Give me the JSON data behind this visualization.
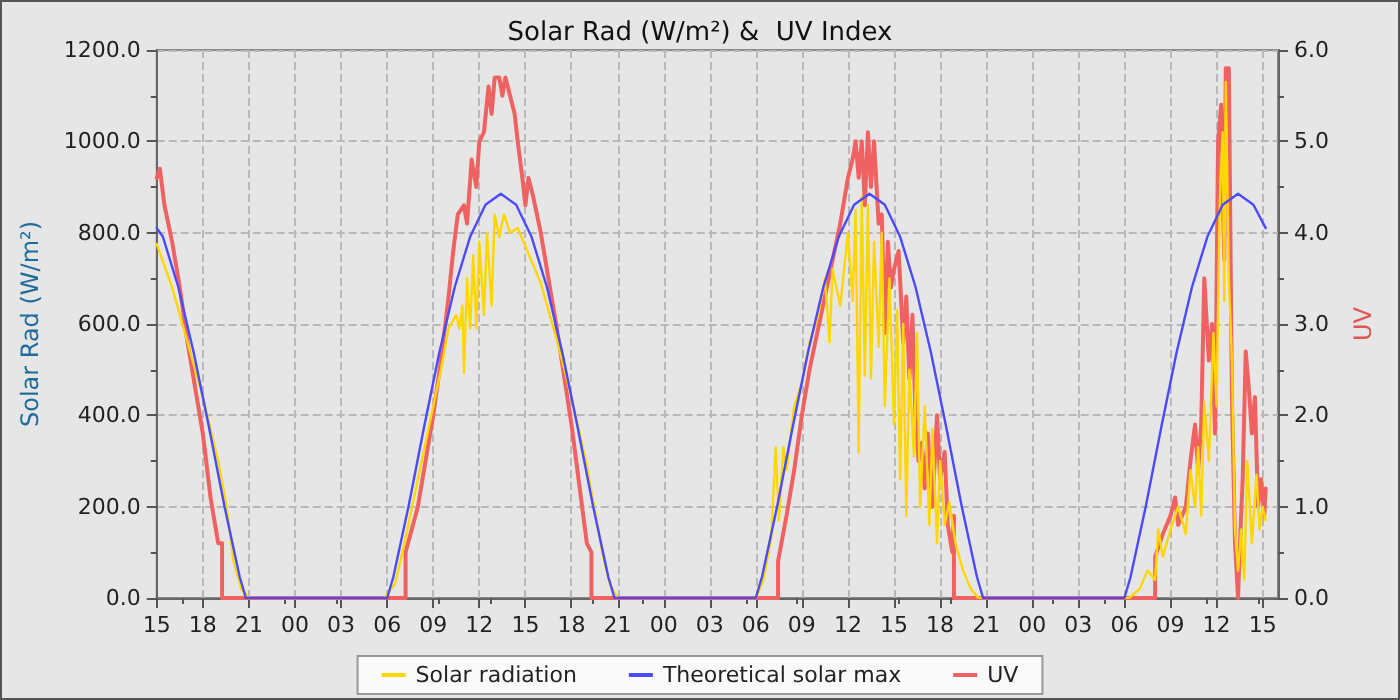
{
  "chart_data": {
    "type": "line",
    "title": "Solar Rad (W/m²) &  UV Index",
    "ylabel": "Solar Rad (W/m²)",
    "y2label": "UV",
    "xlim": [
      15,
      88
    ],
    "xticks": [
      {
        "value": 15,
        "label": "15"
      },
      {
        "value": 18,
        "label": "18"
      },
      {
        "value": 21,
        "label": "21"
      },
      {
        "value": 24,
        "label": "00"
      },
      {
        "value": 27,
        "label": "03"
      },
      {
        "value": 30,
        "label": "06"
      },
      {
        "value": 33,
        "label": "09"
      },
      {
        "value": 36,
        "label": "12"
      },
      {
        "value": 39,
        "label": "15"
      },
      {
        "value": 42,
        "label": "18"
      },
      {
        "value": 45,
        "label": "21"
      },
      {
        "value": 48,
        "label": "00"
      },
      {
        "value": 51,
        "label": "03"
      },
      {
        "value": 54,
        "label": "06"
      },
      {
        "value": 57,
        "label": "09"
      },
      {
        "value": 60,
        "label": "12"
      },
      {
        "value": 63,
        "label": "15"
      },
      {
        "value": 66,
        "label": "18"
      },
      {
        "value": 69,
        "label": "21"
      },
      {
        "value": 72,
        "label": "00"
      },
      {
        "value": 75,
        "label": "03"
      },
      {
        "value": 78,
        "label": "06"
      },
      {
        "value": 81,
        "label": "09"
      },
      {
        "value": 84,
        "label": "12"
      },
      {
        "value": 87,
        "label": "15"
      }
    ],
    "ylim": [
      0,
      1200
    ],
    "yticks": [
      {
        "value": 0,
        "label": "0.0"
      },
      {
        "value": 200,
        "label": "200.0"
      },
      {
        "value": 400,
        "label": "400.0"
      },
      {
        "value": 600,
        "label": "600.0"
      },
      {
        "value": 800,
        "label": "800.0"
      },
      {
        "value": 1000,
        "label": "1000.0"
      },
      {
        "value": 1200,
        "label": "1200.0"
      }
    ],
    "y2lim": [
      0,
      6
    ],
    "y2ticks": [
      {
        "value": 0,
        "label": "0.0"
      },
      {
        "value": 1,
        "label": "1.0"
      },
      {
        "value": 2,
        "label": "2.0"
      },
      {
        "value": 3,
        "label": "3.0"
      },
      {
        "value": 4,
        "label": "4.0"
      },
      {
        "value": 5,
        "label": "5.0"
      },
      {
        "value": 6,
        "label": "6.0"
      }
    ],
    "grid": true,
    "legend": "bottom",
    "marker": "none",
    "line_style": "solid",
    "series": [
      {
        "name": "UV",
        "color": "#f06262",
        "axis": "y2",
        "x": [
          15,
          15.2,
          15.5,
          16,
          16.5,
          17,
          17.5,
          18,
          18.5,
          19,
          19.25,
          19.25,
          31.2,
          31.2,
          32,
          32.5,
          33,
          33.5,
          34,
          34.3,
          34.6,
          35,
          35.2,
          35.5,
          35.8,
          36,
          36.3,
          36.6,
          36.8,
          37,
          37.3,
          37.5,
          37.7,
          38,
          38.3,
          38.5,
          38.8,
          39,
          39.2,
          39.5,
          40,
          41,
          42,
          43,
          43.3,
          43.3,
          55.45,
          55.45,
          56,
          56.5,
          57,
          57.5,
          58,
          58.5,
          59,
          59.5,
          60,
          60.3,
          60.5,
          60.7,
          60.9,
          61.1,
          61.3,
          61.5,
          61.7,
          62,
          62.2,
          62.4,
          62.6,
          62.8,
          63,
          63.3,
          63.6,
          63.8,
          64,
          64.2,
          64.4,
          64.6,
          64.8,
          65,
          65.2,
          65.5,
          65.8,
          66,
          66.3,
          66.5,
          66.8,
          66.9,
          66.9,
          80,
          80,
          80.5,
          81,
          81.3,
          81.5,
          82,
          82.3,
          82.6,
          82.8,
          83,
          83.2,
          83.5,
          83.7,
          83.9,
          84.1,
          84.3,
          84.5,
          84.6,
          84.8,
          85,
          85.2,
          85.4,
          85.5,
          85.7,
          85.9,
          86.1,
          86.3,
          86.5,
          86.7,
          86.9,
          87.1,
          87.2
        ],
        "values": [
          4.6,
          4.7,
          4.3,
          3.9,
          3.4,
          2.8,
          2.3,
          1.8,
          1.1,
          0.6,
          0.6,
          0,
          0,
          0.5,
          1.0,
          1.5,
          2.0,
          2.6,
          3.3,
          3.8,
          4.2,
          4.3,
          4.1,
          4.8,
          4.5,
          5.0,
          5.1,
          5.6,
          5.3,
          5.7,
          5.7,
          5.5,
          5.7,
          5.5,
          5.3,
          5.0,
          4.6,
          4.3,
          4.6,
          4.4,
          4.0,
          3.0,
          1.9,
          0.6,
          0.5,
          0,
          0,
          0.4,
          0.9,
          1.4,
          2.0,
          2.5,
          2.9,
          3.3,
          3.7,
          4.1,
          4.6,
          4.8,
          5.0,
          4.6,
          5.0,
          4.3,
          5.1,
          4.5,
          5.0,
          4.1,
          4.2,
          2.9,
          3.9,
          3.4,
          3.6,
          3.8,
          2.8,
          3.3,
          2.4,
          3.1,
          2.0,
          1.5,
          1.7,
          1.2,
          1.8,
          1.0,
          2.0,
          1.3,
          1.6,
          0.8,
          0.5,
          0.9,
          0,
          0,
          0.45,
          0.7,
          0.9,
          1.1,
          0.8,
          1.0,
          1.5,
          1.9,
          1.4,
          1.9,
          3.5,
          2.6,
          3.0,
          1.8,
          5.0,
          5.4,
          3.7,
          5.8,
          5.8,
          2.2,
          0.6,
          0,
          0.5,
          1.3,
          2.7,
          2.3,
          1.8,
          2.2,
          1.0,
          1.3,
          0.9,
          1.2
        ]
      },
      {
        "name": "Solar radiation",
        "color": "#ffd700",
        "x": [
          15,
          16,
          17,
          18,
          19,
          19.5,
          20,
          20.5,
          21,
          29.8,
          30.5,
          31,
          32,
          33,
          33.5,
          34,
          34.5,
          34.7,
          34.9,
          35,
          35.2,
          35.4,
          35.6,
          35.8,
          36,
          36.3,
          36.5,
          36.8,
          37,
          37.3,
          37.6,
          38,
          38.5,
          39,
          40,
          41,
          42,
          43,
          44,
          44.5,
          45,
          54,
          54.5,
          55,
          55.3,
          55.5,
          55.8,
          56,
          56.5,
          57,
          57.5,
          58,
          58.5,
          58.8,
          59,
          59.5,
          60,
          60.3,
          60.5,
          60.7,
          60.9,
          61.1,
          61.3,
          61.5,
          61.7,
          62,
          62.2,
          62.4,
          62.7,
          63,
          63.2,
          63.4,
          63.6,
          63.8,
          64,
          64.3,
          64.5,
          64.7,
          65,
          65.3,
          65.5,
          65.8,
          66,
          66.3,
          66.6,
          67,
          67.5,
          68,
          68.5,
          78.3,
          79,
          79.5,
          80,
          80.2,
          80.5,
          81,
          81.5,
          82,
          82.3,
          82.6,
          82.8,
          83,
          83.2,
          83.5,
          83.8,
          84,
          84.2,
          84.4,
          84.5,
          84.6,
          84.8,
          85,
          85.2,
          85.4,
          85.6,
          85.8,
          86,
          86.3,
          86.6,
          86.8,
          87,
          87.2
        ],
        "values": [
          775,
          680,
          560,
          440,
          300,
          210,
          80,
          20,
          0,
          0,
          30,
          100,
          260,
          420,
          500,
          590,
          620,
          590,
          640,
          493,
          700,
          590,
          750,
          590,
          780,
          620,
          800,
          640,
          840,
          790,
          840,
          800,
          810,
          770,
          690,
          570,
          440,
          290,
          100,
          30,
          0,
          0,
          40,
          130,
          330,
          170,
          330,
          280,
          420,
          470,
          560,
          610,
          700,
          560,
          720,
          640,
          800,
          650,
          850,
          319,
          880,
          487,
          860,
          480,
          780,
          550,
          800,
          420,
          700,
          380,
          630,
          260,
          600,
          180,
          500,
          310,
          580,
          200,
          420,
          160,
          370,
          120,
          300,
          160,
          210,
          120,
          60,
          20,
          0,
          0,
          20,
          60,
          40,
          150,
          90,
          150,
          200,
          140,
          280,
          200,
          330,
          180,
          430,
          300,
          580,
          420,
          860,
          1020,
          650,
          1130,
          700,
          520,
          150,
          60,
          150,
          40,
          300,
          120,
          270,
          150,
          200,
          170
        ]
      },
      {
        "name": "Theoretical solar max",
        "color": "#4a4aff",
        "x": [
          15,
          15.4,
          16.4,
          17.4,
          18.4,
          19.4,
          20.4,
          20.8,
          30,
          30.4,
          31.4,
          32.4,
          33.4,
          34.4,
          35.4,
          36.4,
          37.4,
          38.4,
          39.4,
          40.4,
          41.4,
          42.4,
          43.4,
          44.4,
          44.8,
          54,
          54.4,
          55.4,
          56.4,
          57.4,
          58.4,
          59.4,
          60.4,
          61.4,
          62.4,
          63.4,
          64.4,
          65.4,
          66.4,
          67.4,
          68.4,
          68.8,
          78,
          78.4,
          79.4,
          80.4,
          81.4,
          82.4,
          83.4,
          84.4,
          85.4,
          86.4,
          87.2
        ],
        "values": [
          810,
          791,
          681,
          538,
          374,
          202,
          46,
          0,
          0,
          46,
          202,
          374,
          538,
          681,
          791,
          861,
          885,
          861,
          791,
          681,
          538,
          374,
          202,
          46,
          0,
          0,
          46,
          202,
          374,
          538,
          681,
          791,
          861,
          885,
          861,
          791,
          681,
          538,
          374,
          202,
          46,
          0,
          0,
          46,
          202,
          374,
          538,
          681,
          791,
          861,
          885,
          861,
          810
        ]
      }
    ]
  }
}
